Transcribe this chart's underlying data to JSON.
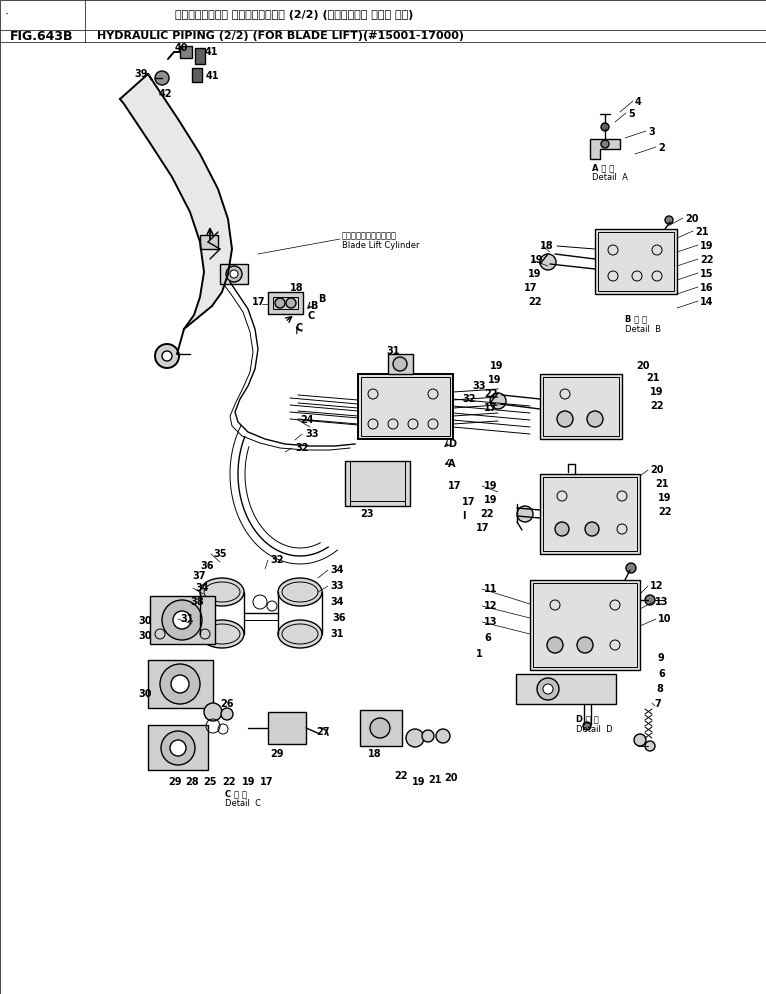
{
  "fig_number": "FIG.643B",
  "title_jp": "ハイト゛ロリック バイヒ゛ンク゛ (2/2) (ブ゛レート゛ リフト ヨウ)",
  "title_en": "HYDRAULIC PIPING (2/2) (FOR BLADE LIFT)(#15001-17000)",
  "bg_color": "#ffffff"
}
